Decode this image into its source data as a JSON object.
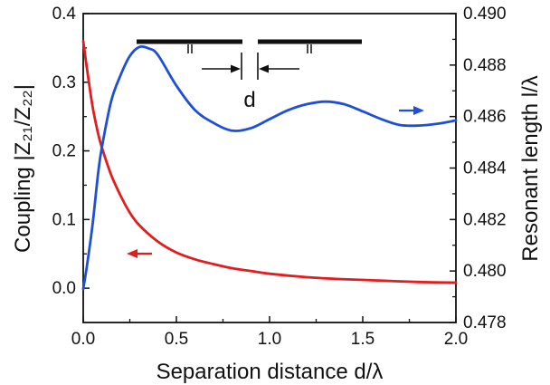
{
  "chart_data": {
    "type": "line",
    "xlabel": "Separation distance d/λ",
    "ylabel_left": "Coupling |Z₂₁/Z₂₂|",
    "ylabel_right": "Resonant length l/λ",
    "xlim": [
      0.0,
      2.0
    ],
    "ylim_left": [
      -0.05,
      0.4
    ],
    "ylim_right": [
      0.478,
      0.49
    ],
    "x_ticks": [
      "0.0",
      "0.5",
      "1.0",
      "1.5",
      "2.0"
    ],
    "y_left_ticks": [
      "0.0",
      "0.1",
      "0.2",
      "0.3",
      "0.4"
    ],
    "y_right_ticks": [
      "0.478",
      "0.480",
      "0.482",
      "0.484",
      "0.486",
      "0.488",
      "0.490"
    ],
    "annotation_label": "d",
    "series": [
      {
        "axis": "left",
        "color": "#e11d1d",
        "x": [
          0.0,
          0.02,
          0.05,
          0.08,
          0.1,
          0.15,
          0.2,
          0.25,
          0.3,
          0.4,
          0.5,
          0.6,
          0.7,
          0.8,
          0.9,
          1.0,
          1.2,
          1.4,
          1.6,
          1.8,
          2.0
        ],
        "values": [
          0.36,
          0.32,
          0.265,
          0.225,
          0.205,
          0.165,
          0.135,
          0.11,
          0.092,
          0.068,
          0.052,
          0.042,
          0.035,
          0.029,
          0.025,
          0.021,
          0.016,
          0.013,
          0.011,
          0.009,
          0.008
        ]
      },
      {
        "axis": "right",
        "color": "#1f4fd6",
        "x": [
          0.0,
          0.02,
          0.05,
          0.08,
          0.1,
          0.15,
          0.2,
          0.25,
          0.3,
          0.35,
          0.4,
          0.5,
          0.6,
          0.7,
          0.8,
          0.9,
          1.0,
          1.1,
          1.2,
          1.3,
          1.4,
          1.5,
          1.6,
          1.7,
          1.8,
          1.9,
          2.0
        ],
        "values": [
          0.4793,
          0.4802,
          0.4818,
          0.4838,
          0.4848,
          0.4866,
          0.4876,
          0.48835,
          0.4887,
          0.48865,
          0.4884,
          0.4872,
          0.48625,
          0.48575,
          0.48545,
          0.48555,
          0.4859,
          0.48625,
          0.48648,
          0.48658,
          0.48648,
          0.4862,
          0.4859,
          0.48567,
          0.48565,
          0.48572,
          0.48585
        ]
      }
    ]
  }
}
